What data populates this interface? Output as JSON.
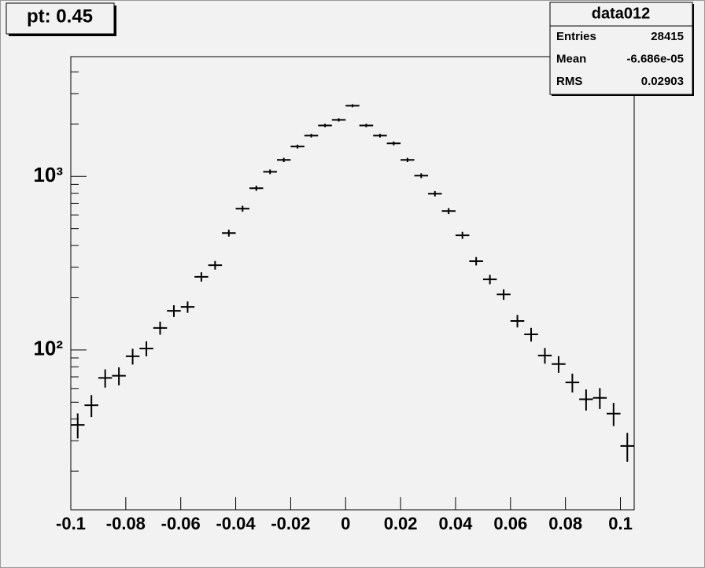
{
  "chart_data": {
    "type": "histogram",
    "title": "pt: 0.45",
    "log_y": true,
    "color": "#000000",
    "bins": [
      -0.1,
      -0.095,
      -0.09,
      -0.085,
      -0.08,
      -0.075,
      -0.07,
      -0.065,
      -0.06,
      -0.055,
      -0.05,
      -0.045,
      -0.04,
      -0.035,
      -0.03,
      -0.025,
      -0.02,
      -0.015,
      -0.01,
      -0.005,
      0,
      0.005,
      0.01,
      0.015,
      0.02,
      0.025,
      0.03,
      0.035,
      0.04,
      0.045,
      0.05,
      0.055,
      0.06,
      0.065,
      0.07,
      0.075,
      0.08,
      0.085,
      0.09,
      0.095,
      0.1,
      0.105
    ],
    "values": [
      37,
      48,
      69,
      71,
      92,
      102,
      134,
      168,
      177,
      264,
      308,
      472,
      652,
      855,
      1064,
      1245,
      1486,
      1718,
      1966,
      2117,
      2555,
      1966,
      1718,
      1550,
      1245,
      1010,
      795,
      632,
      458,
      325,
      255,
      209,
      147,
      123,
      93,
      83,
      65,
      52,
      53,
      43,
      28
    ],
    "xlim": [
      -0.1,
      0.105
    ],
    "ylim": [
      12,
      4900
    ],
    "xticks": [
      -0.1,
      -0.08,
      -0.06,
      -0.04,
      -0.02,
      0,
      0.02,
      0.04,
      0.06,
      0.08,
      0.1
    ],
    "yticks": [
      {
        "value": 100,
        "label": "10²"
      },
      {
        "value": 1000,
        "label": "10³"
      }
    ],
    "yminorticks": [
      20,
      30,
      40,
      50,
      60,
      70,
      80,
      90,
      200,
      300,
      400,
      500,
      600,
      700,
      800,
      900,
      2000,
      3000,
      4000
    ],
    "stats": {
      "title": "data012",
      "rows": [
        [
          "Entries",
          "28415"
        ],
        [
          "Mean",
          "-6.686e-05"
        ],
        [
          "RMS",
          "0.02903"
        ]
      ]
    }
  }
}
